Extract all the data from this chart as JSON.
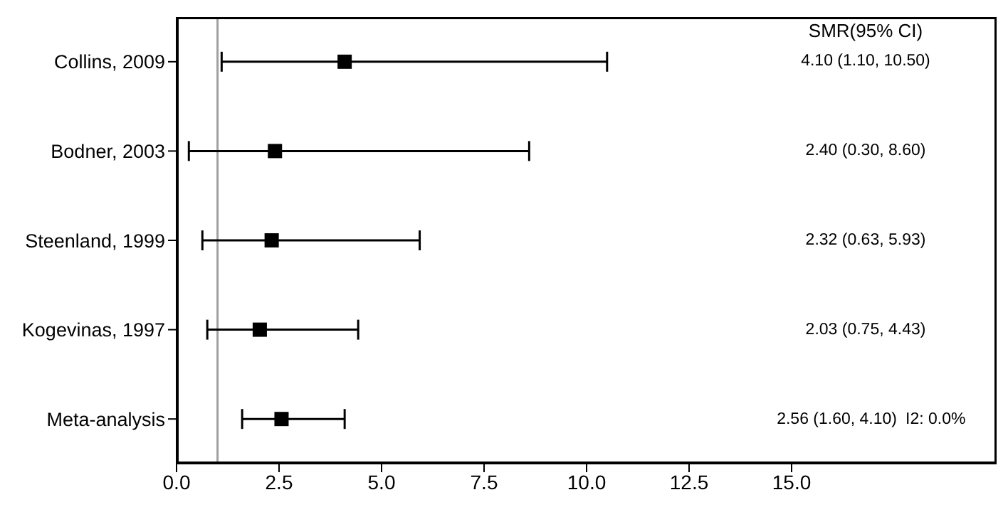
{
  "chart_data": {
    "type": "scatter",
    "orientation": "horizontal",
    "categories": [
      "Collins, 2009",
      "Bodner, 2003",
      "Steenland, 1999",
      "Kogevinas, 1997",
      "Meta-analysis"
    ],
    "values": [
      4.1,
      2.4,
      2.32,
      2.03,
      2.56
    ],
    "errors": [
      [
        1.1,
        10.5
      ],
      [
        0.3,
        8.6
      ],
      [
        0.63,
        5.93
      ],
      [
        0.75,
        4.43
      ],
      [
        1.6,
        4.1
      ]
    ],
    "color": "#000000",
    "marker": "square",
    "xlim": [
      0,
      20
    ],
    "xticks": [
      {
        "value": 0,
        "label": "0.0"
      },
      {
        "value": 2.5,
        "label": "2.5"
      },
      {
        "value": 5,
        "label": "5.0"
      },
      {
        "value": 7.5,
        "label": "7.5"
      },
      {
        "value": 10,
        "label": "10.0"
      },
      {
        "value": 12.5,
        "label": "12.5"
      },
      {
        "value": 15,
        "label": "15.0"
      }
    ],
    "ref_lines": [
      {
        "axis": "x",
        "value": 1,
        "color": "#a0a0a0"
      }
    ],
    "annotations": [
      "SMR(95% CI)",
      "4.10 (1.10, 10.50)",
      "2.40 (0.30, 8.60)",
      "2.32 (0.63, 5.93)",
      "2.03 (0.75, 4.43)",
      "2.56 (1.60, 4.10)",
      "I2: 0.0%"
    ],
    "grid": false,
    "legend": false
  }
}
